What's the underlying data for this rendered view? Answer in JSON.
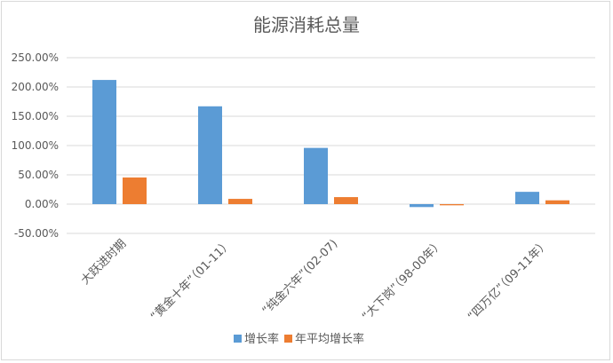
{
  "chart_data": {
    "type": "bar",
    "title": "能源消耗总量",
    "categories": [
      "大跃进时期",
      "“黄金十年”（01-11）",
      "“纯金六年”(02-07)",
      "“大下岗”（98-00年）",
      "“四万亿”（09-11年）"
    ],
    "series": [
      {
        "name": "增长率",
        "color": "#5b9bd5",
        "values": [
          212,
          167,
          96,
          -5,
          21
        ]
      },
      {
        "name": "年平均增长率",
        "color": "#ed7d31",
        "values": [
          45.5,
          9,
          12,
          -2,
          6.5
        ]
      }
    ],
    "yticks": [
      "250.00%",
      "200.00%",
      "150.00%",
      "100.00%",
      "50.00%",
      "0.00%",
      "-50.00%"
    ],
    "ylim": [
      -50,
      250
    ],
    "yunit": "%",
    "grid": true,
    "legend": "bottom"
  }
}
